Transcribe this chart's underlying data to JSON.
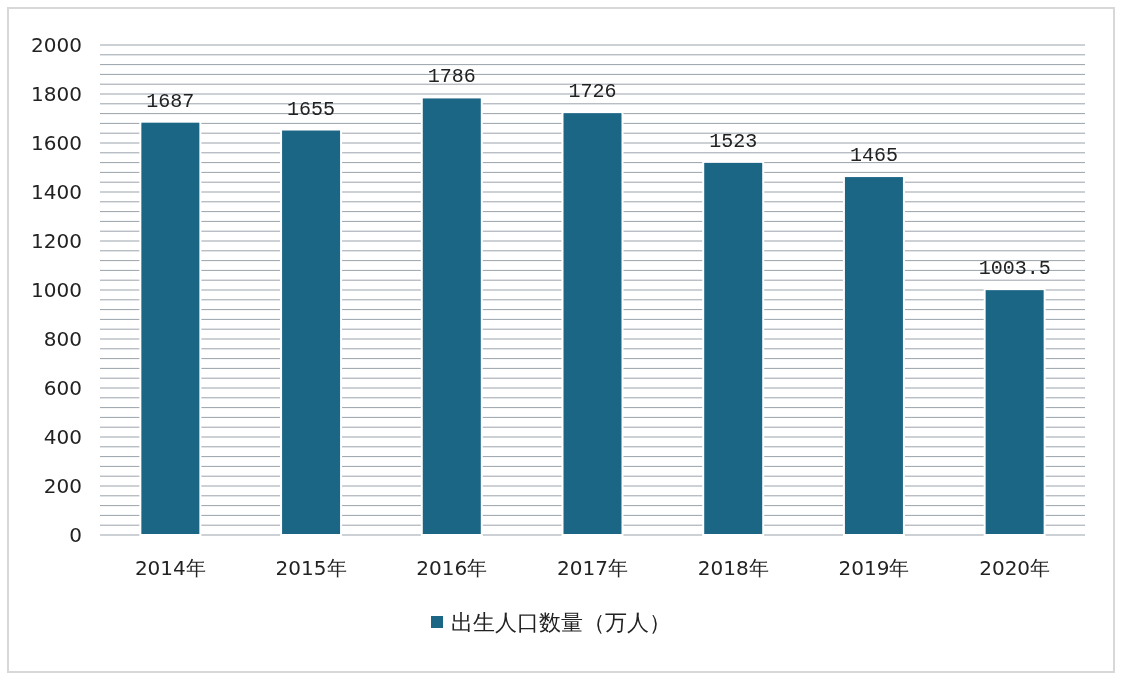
{
  "chart_data": {
    "type": "bar",
    "categories": [
      "2014年",
      "2015年",
      "2016年",
      "2017年",
      "2018年",
      "2019年",
      "2020年"
    ],
    "series": [
      {
        "name": "出生人口数量（万人）",
        "color": "#1b6585",
        "values": [
          1687,
          1655,
          1786,
          1726,
          1523,
          1465,
          1003.5
        ]
      }
    ],
    "value_labels": [
      "1687",
      "1655",
      "1786",
      "1726",
      "1523",
      "1465",
      "1003.5"
    ],
    "ylim": [
      0,
      2000
    ],
    "yticks": [
      0,
      {
        "value": 40,
        "label": null
      },
      {
        "value": 80,
        "label": null
      },
      {
        "value": 120,
        "label": null
      },
      {
        "value": 160,
        "label": null
      },
      200,
      {
        "value": 240,
        "label": null
      },
      {
        "value": 280,
        "label": null
      },
      {
        "value": 320,
        "label": null
      },
      {
        "value": 360,
        "label": null
      },
      400,
      {
        "value": 440,
        "label": null
      },
      {
        "value": 480,
        "label": null
      },
      {
        "value": 520,
        "label": null
      },
      {
        "value": 560,
        "label": null
      },
      600,
      {
        "value": 640,
        "label": null
      },
      {
        "value": 680,
        "label": null
      },
      {
        "value": 720,
        "label": null
      },
      {
        "value": 760,
        "label": null
      },
      800,
      {
        "value": 840,
        "label": null
      },
      {
        "value": 880,
        "label": null
      },
      {
        "value": 920,
        "label": null
      },
      {
        "value": 960,
        "label": null
      },
      1000,
      {
        "value": 1040,
        "label": null
      },
      {
        "value": 1080,
        "label": null
      },
      {
        "value": 1120,
        "label": null
      },
      {
        "value": 1160,
        "label": null
      },
      1200,
      {
        "value": 1240,
        "label": null
      },
      {
        "value": 1280,
        "label": null
      },
      {
        "value": 1320,
        "label": null
      },
      {
        "value": 1360,
        "label": null
      },
      1400,
      {
        "value": 1440,
        "label": null
      },
      {
        "value": 1480,
        "label": null
      },
      {
        "value": 1520,
        "label": null
      },
      {
        "value": 1560,
        "label": null
      },
      1600,
      {
        "value": 1640,
        "label": null
      },
      {
        "value": 1680,
        "label": null
      },
      {
        "value": 1720,
        "label": null
      },
      {
        "value": 1760,
        "label": null
      },
      1800,
      {
        "value": 1840,
        "label": null
      },
      {
        "value": 1880,
        "label": null
      },
      {
        "value": 1920,
        "label": null
      },
      {
        "value": 1960,
        "label": null
      },
      2000
    ],
    "grid": "y",
    "legend": "bottom"
  }
}
